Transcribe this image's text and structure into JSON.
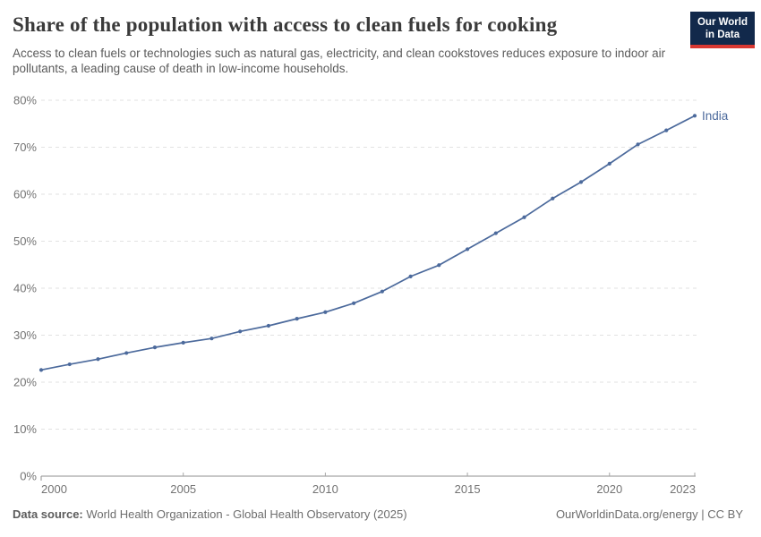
{
  "header": {
    "title": "Share of the population with access to clean fuels for cooking",
    "subtitle": "Access to clean fuels or technologies such as natural gas, electricity, and clean cookstoves reduces exposure to indoor air pollutants, a leading cause of death in low-income households.",
    "logo": {
      "line1": "Our World",
      "line2": "in Data",
      "bg_color": "#12294b",
      "accent_color": "#d93832"
    }
  },
  "chart_data": {
    "type": "line",
    "title": "Share of the population with access to clean fuels for cooking",
    "xlabel": "",
    "ylabel": "",
    "xlim": [
      2000,
      2023
    ],
    "ylim": [
      0,
      80
    ],
    "grid": "horizontal-dashed",
    "legend_position": "end-of-line-label",
    "xticks": [
      2000,
      2005,
      2010,
      2015,
      2020,
      2023
    ],
    "ytick_values": [
      0,
      10,
      20,
      30,
      40,
      50,
      60,
      70,
      80
    ],
    "ytick_labels": [
      "0%",
      "10%",
      "20%",
      "30%",
      "40%",
      "50%",
      "60%",
      "70%",
      "80%"
    ],
    "colors": {
      "gridline": "#e2e2e2",
      "axis": "#8f8f8f",
      "tick_label": "#737373"
    },
    "series": [
      {
        "name": "India",
        "color": "#4c6a9c",
        "x": [
          2000,
          2001,
          2002,
          2003,
          2004,
          2005,
          2006,
          2007,
          2008,
          2009,
          2010,
          2011,
          2012,
          2013,
          2014,
          2015,
          2016,
          2017,
          2018,
          2019,
          2020,
          2021,
          2022,
          2023
        ],
        "values": [
          22.6,
          23.8,
          24.9,
          26.2,
          27.4,
          28.4,
          29.3,
          30.8,
          32.0,
          33.5,
          34.9,
          36.8,
          39.3,
          42.5,
          44.9,
          48.3,
          51.7,
          55.1,
          59.1,
          62.6,
          66.5,
          70.6,
          73.6,
          76.7
        ]
      }
    ]
  },
  "footer": {
    "datasource_label": "Data source:",
    "datasource_text": "World Health Organization - Global Health Observatory (2025)",
    "right_text": "OurWorldinData.org/energy | CC BY"
  }
}
